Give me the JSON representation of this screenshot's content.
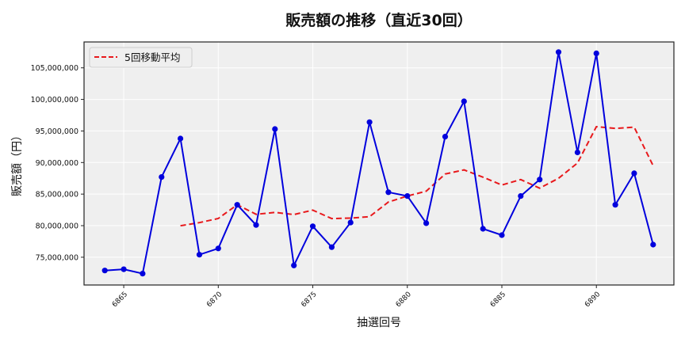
{
  "chart_data": {
    "type": "line",
    "title": "販売額の推移（直近30回）",
    "xlabel": "抽選回号",
    "ylabel": "販売額（円）",
    "x": [
      6864,
      6865,
      6866,
      6867,
      6868,
      6869,
      6870,
      6871,
      6872,
      6873,
      6874,
      6875,
      6876,
      6877,
      6878,
      6879,
      6880,
      6881,
      6882,
      6883,
      6884,
      6885,
      6886,
      6887,
      6888,
      6889,
      6890,
      6891,
      6892,
      6893
    ],
    "series": [
      {
        "name": "販売額",
        "style": "solid-with-markers",
        "color": "#0000dd",
        "in_legend": false,
        "values": [
          72900000,
          73100000,
          72400000,
          87700000,
          93800000,
          75400000,
          76400000,
          83300000,
          80100000,
          95300000,
          73700000,
          79900000,
          76600000,
          80500000,
          96400000,
          85300000,
          84700000,
          80400000,
          94100000,
          99700000,
          79500000,
          78500000,
          84700000,
          87300000,
          107500000,
          91600000,
          107300000,
          83300000,
          88300000,
          77000000
        ]
      },
      {
        "name": "5回移動平均",
        "style": "dashed",
        "color": "#e8191c",
        "in_legend": true,
        "values": [
          null,
          null,
          null,
          null,
          79980000,
          80480000,
          81140000,
          83320000,
          81800000,
          82100000,
          81760000,
          82460000,
          81120000,
          81200000,
          81420000,
          83740000,
          84700000,
          85460000,
          88180000,
          88840000,
          87680000,
          86440000,
          87300000,
          85940000,
          87500000,
          89920000,
          95680000,
          95400000,
          95600000,
          89500000
        ]
      }
    ],
    "x_ticks": [
      6865,
      6870,
      6875,
      6880,
      6885,
      6890
    ],
    "x_tick_labels": [
      "6865",
      "6870",
      "6875",
      "6880",
      "6885",
      "6890"
    ],
    "y_ticks": [
      75000000,
      80000000,
      85000000,
      90000000,
      95000000,
      100000000,
      105000000
    ],
    "y_tick_labels": [
      "75,000,000",
      "80,000,000",
      "85,000,000",
      "90,000,000",
      "95,000,000",
      "100,000,000",
      "105,000,000"
    ],
    "xlim": [
      6862.9,
      6894.1
    ],
    "ylim": [
      70600000,
      109100000
    ],
    "grid": true,
    "legend_position": "upper left",
    "background": "#efefef"
  }
}
